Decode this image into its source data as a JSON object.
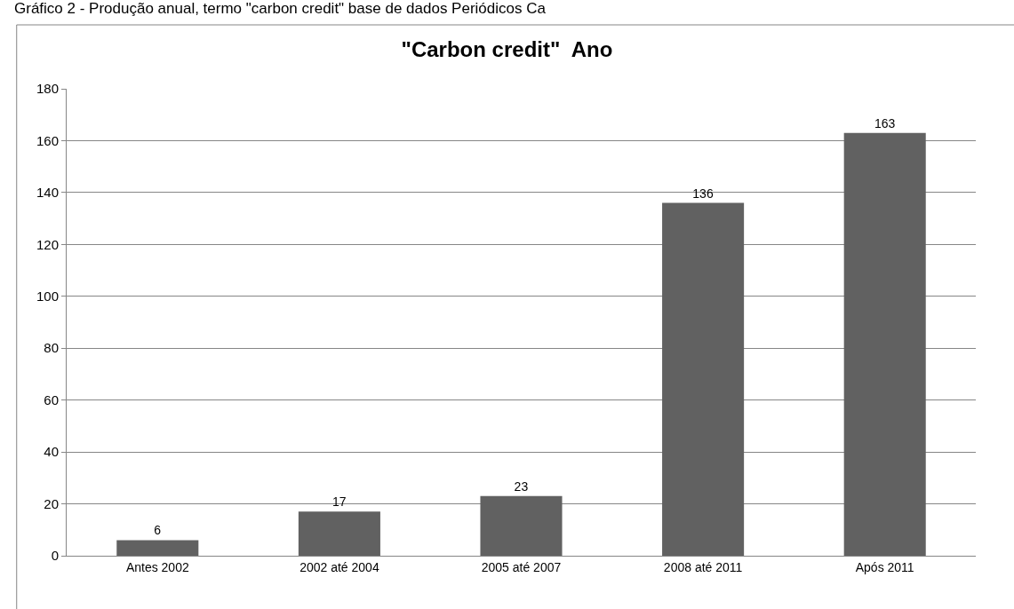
{
  "chart_data": {
    "type": "bar",
    "title": "\"Carbon credit\"  Ano",
    "annotations": [
      "Gráfico 2 - Produção anual, termo \"carbon credit\" base de dados Periódicos Ca"
    ],
    "categories": [
      "Antes 2002",
      "2002 até 2004",
      "2005 até 2007",
      "2008 até 2011",
      "Após 2011"
    ],
    "values": [
      6,
      17,
      23,
      136,
      163
    ],
    "color": "#616161",
    "ylim": [
      0,
      180
    ],
    "yticks": [
      0,
      20,
      40,
      60,
      80,
      100,
      120,
      140,
      160,
      180
    ],
    "grid": "y",
    "data_labels": true,
    "legend": false
  }
}
